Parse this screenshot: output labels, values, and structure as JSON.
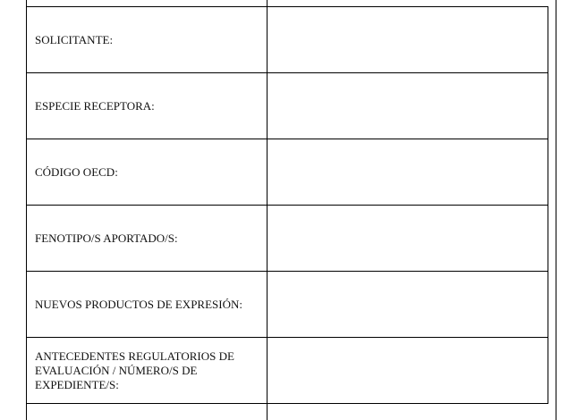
{
  "form_rows": [
    {
      "label": "SOLICITANTE:",
      "value": ""
    },
    {
      "label": "ESPECIE RECEPTORA:",
      "value": ""
    },
    {
      "label": "CÓDIGO OECD:",
      "value": ""
    },
    {
      "label": "FENOTIPO/S APORTADO/S:",
      "value": ""
    },
    {
      "label": "NUEVOS PRODUCTOS DE EXPRESIÓN:",
      "value": ""
    },
    {
      "label": "ANTECEDENTES REGULATORIOS DE EVALUACIÓN / NÚMERO/S DE EXPEDIENTE/S:",
      "value": ""
    }
  ]
}
